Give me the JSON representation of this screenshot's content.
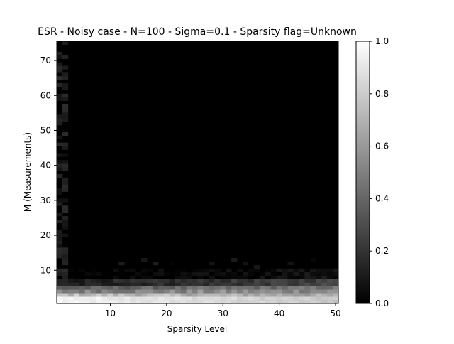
{
  "chart_data": {
    "type": "heatmap",
    "title": "ESR - Noisy case - N=100 - Sigma=0.1 - Sparsity flag=Unknown",
    "xlabel": "Sparsity Level",
    "ylabel": "M (Measurements)",
    "xlim": [
      1,
      50
    ],
    "ylim": [
      1,
      75
    ],
    "xticks": [
      10,
      20,
      30,
      40,
      50
    ],
    "yticks": [
      10,
      20,
      30,
      40,
      50,
      60,
      70
    ],
    "colormap": "gray",
    "colorbar": {
      "range": [
        0.0,
        1.0
      ],
      "ticks": [
        "0.0",
        "0.2",
        "0.4",
        "0.6",
        "0.8",
        "1.0"
      ]
    },
    "description_of_values": "ESR fraction per (Sparsity Level, M) cell; near 1 only for small M (about 1-5), decreasing to 0 by M about 10-12; column at sparsity 1-2 has faint values across all M; all other cells near 0.",
    "grid": false
  }
}
